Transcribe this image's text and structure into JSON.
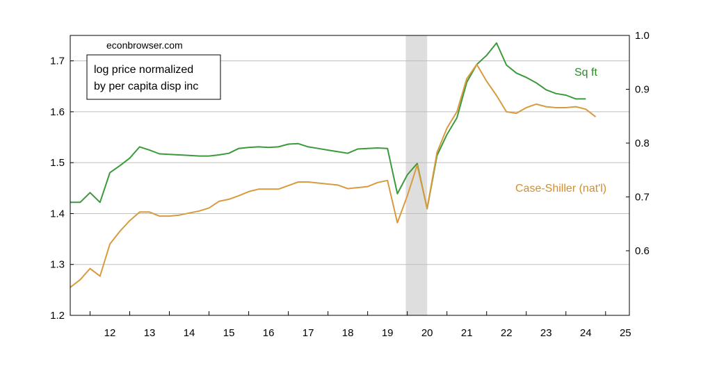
{
  "chart_data": {
    "type": "line",
    "watermark": "econbrowser.com",
    "title_box": [
      "log price normalized",
      "by per capita disp inc"
    ],
    "x_axis": {
      "ticks": [
        12,
        13,
        14,
        15,
        16,
        17,
        18,
        19,
        20,
        21,
        22,
        23,
        24,
        25
      ],
      "range": [
        2011.5,
        2025.6
      ]
    },
    "y_left": {
      "ticks": [
        "1.2",
        "1.3",
        "1.4",
        "1.5",
        "1.6",
        "1.7"
      ],
      "range": [
        1.2,
        1.75
      ]
    },
    "y_right": {
      "ticks": [
        "0.6",
        "0.7",
        "0.8",
        "0.9",
        "1.0"
      ],
      "range": [
        0.48,
        1.0
      ]
    },
    "grid": true,
    "recession_shading": [
      2019.96,
      2020.5
    ],
    "series": [
      {
        "name": "Sq ft",
        "axis": "right",
        "color": "#3a9a3a",
        "x": [
          2011.5,
          2011.75,
          2012.0,
          2012.25,
          2012.5,
          2012.75,
          2013.0,
          2013.25,
          2013.5,
          2013.75,
          2014.0,
          2014.25,
          2014.5,
          2014.75,
          2015.0,
          2015.25,
          2015.5,
          2015.75,
          2016.0,
          2016.25,
          2016.5,
          2016.75,
          2017.0,
          2017.25,
          2017.5,
          2017.75,
          2018.0,
          2018.25,
          2018.5,
          2018.75,
          2019.0,
          2019.25,
          2019.5,
          2019.75,
          2020.0,
          2020.25,
          2020.5,
          2020.75,
          2021.0,
          2021.25,
          2021.5,
          2021.75,
          2022.0,
          2022.25,
          2022.5,
          2022.75,
          2023.0,
          2023.25,
          2023.5,
          2023.75,
          2024.0,
          2024.25,
          2024.5
        ],
        "y": [
          0.69,
          0.69,
          0.708,
          0.69,
          0.745,
          0.758,
          0.772,
          0.793,
          0.787,
          0.78,
          0.779,
          0.778,
          0.777,
          0.776,
          0.776,
          0.778,
          0.781,
          0.79,
          0.792,
          0.793,
          0.792,
          0.793,
          0.798,
          0.799,
          0.793,
          0.79,
          0.787,
          0.784,
          0.781,
          0.789,
          0.79,
          0.791,
          0.79,
          0.706,
          0.741,
          0.762,
          0.678,
          0.777,
          0.816,
          0.847,
          0.913,
          0.946,
          0.963,
          0.986,
          0.945,
          0.93,
          0.922,
          0.912,
          0.899,
          0.892,
          0.889,
          0.882,
          0.882
        ]
      },
      {
        "name": "Case-Shiller (nat'l)",
        "axis": "left",
        "color": "#d99a3e",
        "x": [
          2011.5,
          2011.75,
          2012.0,
          2012.25,
          2012.5,
          2012.75,
          2013.0,
          2013.25,
          2013.5,
          2013.75,
          2014.0,
          2014.25,
          2014.5,
          2014.75,
          2015.0,
          2015.25,
          2015.5,
          2015.75,
          2016.0,
          2016.25,
          2016.5,
          2016.75,
          2017.0,
          2017.25,
          2017.5,
          2017.75,
          2018.0,
          2018.25,
          2018.5,
          2018.75,
          2019.0,
          2019.25,
          2019.5,
          2019.75,
          2020.0,
          2020.25,
          2020.5,
          2020.75,
          2021.0,
          2021.25,
          2021.5,
          2021.75,
          2022.0,
          2022.25,
          2022.5,
          2022.75,
          2023.0,
          2023.25,
          2023.5,
          2023.75,
          2024.0,
          2024.25,
          2024.5,
          2024.75
        ],
        "y": [
          1.255,
          1.27,
          1.292,
          1.277,
          1.34,
          1.365,
          1.386,
          1.403,
          1.403,
          1.395,
          1.395,
          1.397,
          1.401,
          1.405,
          1.411,
          1.424,
          1.428,
          1.435,
          1.443,
          1.448,
          1.448,
          1.448,
          1.455,
          1.462,
          1.462,
          1.46,
          1.458,
          1.456,
          1.449,
          1.451,
          1.453,
          1.461,
          1.465,
          1.382,
          1.435,
          1.495,
          1.41,
          1.52,
          1.568,
          1.6,
          1.665,
          1.693,
          1.66,
          1.632,
          1.6,
          1.597,
          1.608,
          1.615,
          1.61,
          1.608,
          1.608,
          1.61,
          1.605,
          1.59
        ]
      }
    ]
  }
}
